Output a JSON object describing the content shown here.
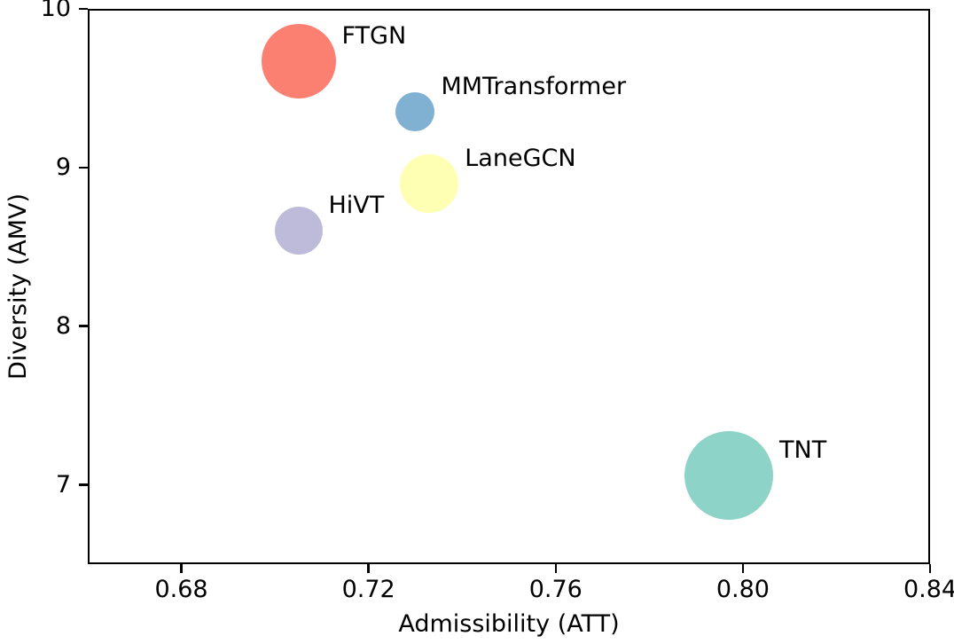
{
  "figure": {
    "background_color": "#ffffff",
    "text_color": "#000000",
    "axis_color": "#000000"
  },
  "chart_data": {
    "type": "scatter",
    "subtype": "bubble",
    "title": "",
    "xlabel": "Admissibility (ATT)",
    "ylabel": "Diversity (AMV)",
    "xlim": [
      0.66,
      0.84
    ],
    "ylim": [
      6.5,
      10
    ],
    "x_ticks": [
      0.68,
      0.72,
      0.76,
      0.8,
      0.84
    ],
    "x_tick_labels": [
      "0.68",
      "0.72",
      "0.76",
      "0.80",
      "0.84"
    ],
    "y_ticks": [
      7,
      8,
      9,
      10
    ],
    "y_tick_labels": [
      "7",
      "8",
      "9",
      "10"
    ],
    "grid": false,
    "legend_position": "none",
    "points": [
      {
        "label": "FTGN",
        "x": 0.705,
        "y": 9.67,
        "radius_px": 42,
        "color": "#FB8072"
      },
      {
        "label": "MMTransformer",
        "x": 0.73,
        "y": 9.35,
        "radius_px": 22,
        "color": "#80B1D3"
      },
      {
        "label": "LaneGCN",
        "x": 0.733,
        "y": 8.9,
        "radius_px": 33,
        "color": "#FFFFB3"
      },
      {
        "label": "HiVT",
        "x": 0.705,
        "y": 8.6,
        "radius_px": 27,
        "color": "#BEBADA"
      },
      {
        "label": "TNT",
        "x": 0.797,
        "y": 7.06,
        "radius_px": 50,
        "color": "#8DD3C7"
      }
    ]
  }
}
